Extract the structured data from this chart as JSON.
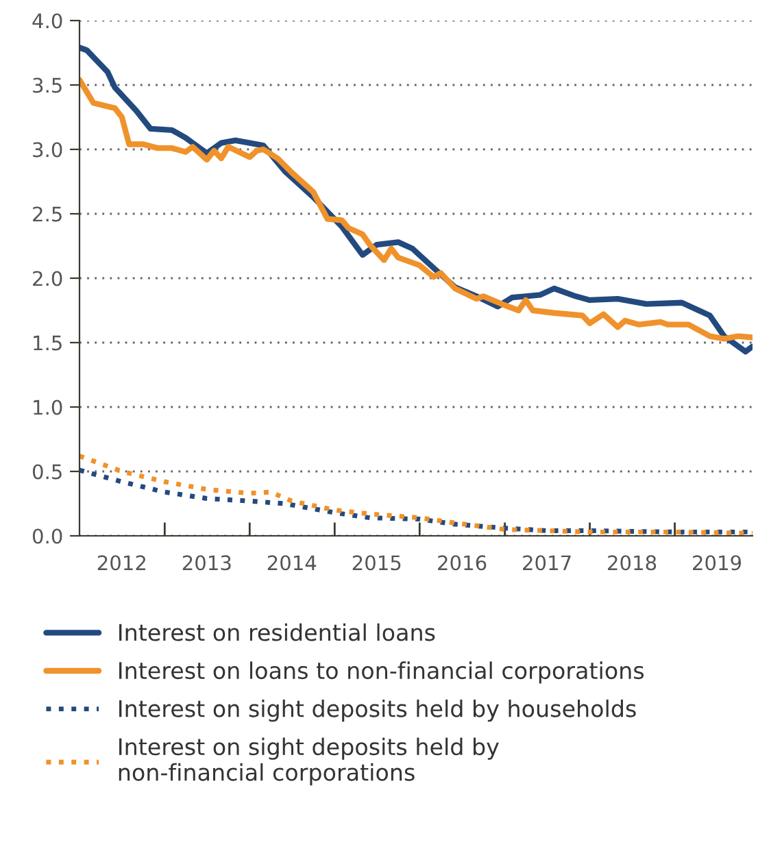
{
  "chart_data": {
    "type": "line",
    "xlim": [
      "2012-01",
      "2019-12"
    ],
    "ylim": [
      0.0,
      4.0
    ],
    "yticks": [
      {
        "value": 0,
        "label": "0.0"
      },
      {
        "value": 0.5,
        "label": "0.5"
      },
      {
        "value": 1,
        "label": "1.0"
      },
      {
        "value": 1.5,
        "label": "1.5"
      },
      {
        "value": 2,
        "label": "2.0"
      },
      {
        "value": 2.5,
        "label": "2.5"
      },
      {
        "value": 3,
        "label": "3.0"
      },
      {
        "value": 3.5,
        "label": "3.5"
      },
      {
        "value": 4,
        "label": "4.0"
      }
    ],
    "xticks": [
      {
        "value": "2013-01",
        "label": null
      },
      {
        "value": "2014-01",
        "label": null
      },
      {
        "value": "2015-01",
        "label": null
      },
      {
        "value": "2016-01",
        "label": null
      },
      {
        "value": "2017-01",
        "label": null
      },
      {
        "value": "2018-01",
        "label": null
      },
      {
        "value": "2019-01",
        "label": null
      },
      {
        "value": "2012-07",
        "label": "2012"
      },
      {
        "value": "2013-07",
        "label": "2013"
      },
      {
        "value": "2014-07",
        "label": "2014"
      },
      {
        "value": "2015-07",
        "label": "2015"
      },
      {
        "value": "2016-07",
        "label": "2016"
      },
      {
        "value": "2017-07",
        "label": "2017"
      },
      {
        "value": "2018-07",
        "label": "2018"
      },
      {
        "value": "2019-07",
        "label": "2019"
      }
    ],
    "grid": "y",
    "legend": "bottom",
    "series": [
      {
        "name": "Interest on residential loans",
        "color": "#234a7f",
        "line_style": "solid",
        "x": [
          "2012-01",
          "2012-02",
          "2012-05",
          "2012-06",
          "2012-09",
          "2012-11",
          "2013-02",
          "2013-04",
          "2013-07",
          "2013-09",
          "2013-11",
          "2014-01",
          "2014-03",
          "2014-06",
          "2014-10",
          "2015-02",
          "2015-05",
          "2015-07",
          "2015-10",
          "2015-12",
          "2016-03",
          "2016-06",
          "2016-09",
          "2016-12",
          "2017-02",
          "2017-06",
          "2017-08",
          "2017-11",
          "2018-01",
          "2018-05",
          "2018-09",
          "2019-02",
          "2019-06",
          "2019-08",
          "2019-11",
          "2019-12"
        ],
        "values": [
          3.79,
          3.77,
          3.6,
          3.48,
          3.3,
          3.16,
          3.15,
          3.09,
          2.97,
          3.05,
          3.07,
          3.05,
          3.03,
          2.83,
          2.63,
          2.4,
          2.18,
          2.26,
          2.28,
          2.23,
          2.08,
          1.93,
          1.86,
          1.78,
          1.85,
          1.87,
          1.92,
          1.86,
          1.83,
          1.84,
          1.8,
          1.81,
          1.71,
          1.55,
          1.43,
          1.47
        ]
      },
      {
        "name": "Interest on loans to non-financial corporations",
        "color": "#f0922b",
        "line_style": "solid",
        "x": [
          "2012-01",
          "2012-03",
          "2012-06",
          "2012-07",
          "2012-08",
          "2012-10",
          "2012-12",
          "2013-02",
          "2013-04",
          "2013-05",
          "2013-07",
          "2013-08",
          "2013-09",
          "2013-10",
          "2014-01",
          "2014-02",
          "2014-03",
          "2014-05",
          "2014-07",
          "2014-10",
          "2014-12",
          "2015-02",
          "2015-03",
          "2015-05",
          "2015-06",
          "2015-08",
          "2015-09",
          "2015-10",
          "2016-01",
          "2016-03",
          "2016-04",
          "2016-06",
          "2016-09",
          "2016-10",
          "2017-01",
          "2017-03",
          "2017-04",
          "2017-05",
          "2017-08",
          "2017-12",
          "2018-01",
          "2018-03",
          "2018-05",
          "2018-06",
          "2018-08",
          "2018-11",
          "2018-12",
          "2019-03",
          "2019-06",
          "2019-08",
          "2019-10",
          "2019-12"
        ],
        "values": [
          3.54,
          3.36,
          3.32,
          3.25,
          3.04,
          3.04,
          3.01,
          3.01,
          2.98,
          3.02,
          2.92,
          2.99,
          2.93,
          3.02,
          2.94,
          2.99,
          3.0,
          2.93,
          2.82,
          2.67,
          2.46,
          2.45,
          2.39,
          2.34,
          2.26,
          2.14,
          2.23,
          2.16,
          2.1,
          2.01,
          2.04,
          1.92,
          1.84,
          1.86,
          1.79,
          1.75,
          1.83,
          1.75,
          1.73,
          1.71,
          1.65,
          1.72,
          1.62,
          1.67,
          1.64,
          1.66,
          1.64,
          1.64,
          1.55,
          1.53,
          1.55,
          1.54
        ]
      },
      {
        "name": "Interest on sight deposits held by households",
        "color": "#234a7f",
        "line_style": "dotted",
        "x": [
          "2012-01",
          "2012-07",
          "2013-01",
          "2013-07",
          "2014-01",
          "2014-06",
          "2015-01",
          "2015-06",
          "2016-01",
          "2016-06",
          "2017-01",
          "2017-07",
          "2018-01",
          "2019-01",
          "2019-12"
        ],
        "values": [
          0.51,
          0.42,
          0.34,
          0.29,
          0.27,
          0.25,
          0.18,
          0.14,
          0.13,
          0.09,
          0.06,
          0.04,
          0.04,
          0.03,
          0.03
        ]
      },
      {
        "name": "Interest on sight deposits held by\nnon-financial corporations",
        "color": "#f0922b",
        "line_style": "dotted",
        "x": [
          "2012-01",
          "2012-07",
          "2013-01",
          "2013-07",
          "2014-01",
          "2014-04",
          "2014-07",
          "2015-01",
          "2015-06",
          "2016-01",
          "2016-06",
          "2017-01",
          "2017-07",
          "2018-01",
          "2019-01",
          "2019-12"
        ],
        "values": [
          0.62,
          0.5,
          0.42,
          0.36,
          0.33,
          0.34,
          0.27,
          0.2,
          0.17,
          0.14,
          0.1,
          0.05,
          0.04,
          0.03,
          0.03,
          0.02
        ]
      }
    ]
  }
}
